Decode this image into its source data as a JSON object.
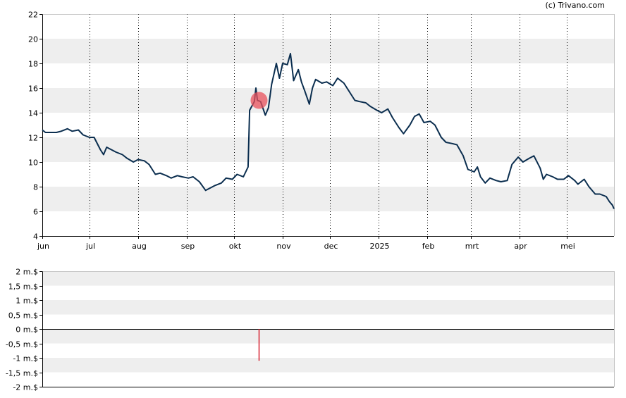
{
  "copyright": "(c) Trivano.com",
  "colors": {
    "line": "#0b2e4f",
    "band": "#eeeeee",
    "marker": "#e8505b",
    "volume_bar": "#d62030",
    "axis": "#000000"
  },
  "chart_data": [
    {
      "type": "line",
      "ylim": [
        4,
        22
      ],
      "y_ticks": [
        "4",
        "6",
        "8",
        "10",
        "12",
        "14",
        "16",
        "18",
        "20",
        "22"
      ],
      "x_ticks": [
        "jun",
        "jul",
        "aug",
        "sep",
        "okt",
        "nov",
        "dec",
        "2025",
        "feb",
        "mrt",
        "apr",
        "mei"
      ],
      "grid": "dotted vertical lines at month ticks, alternating horizontal bands",
      "x_range": [
        "2024-06-01",
        "2025-05-31"
      ],
      "series": [
        {
          "points": [
            [
              "2024-06-01",
              12.6
            ],
            [
              "2024-06-03",
              12.4
            ],
            [
              "2024-06-06",
              12.4
            ],
            [
              "2024-06-10",
              12.4
            ],
            [
              "2024-06-13",
              12.5
            ],
            [
              "2024-06-17",
              12.7
            ],
            [
              "2024-06-20",
              12.5
            ],
            [
              "2024-06-24",
              12.6
            ],
            [
              "2024-06-27",
              12.2
            ],
            [
              "2024-07-01",
              12.0
            ],
            [
              "2024-07-04",
              12.0
            ],
            [
              "2024-07-08",
              11.0
            ],
            [
              "2024-07-10",
              10.6
            ],
            [
              "2024-07-12",
              11.2
            ],
            [
              "2024-07-15",
              11.0
            ],
            [
              "2024-07-18",
              10.8
            ],
            [
              "2024-07-22",
              10.6
            ],
            [
              "2024-07-25",
              10.3
            ],
            [
              "2024-07-29",
              10.0
            ],
            [
              "2024-08-01",
              10.2
            ],
            [
              "2024-08-05",
              10.1
            ],
            [
              "2024-08-08",
              9.8
            ],
            [
              "2024-08-12",
              9.0
            ],
            [
              "2024-08-15",
              9.1
            ],
            [
              "2024-08-19",
              8.9
            ],
            [
              "2024-08-22",
              8.7
            ],
            [
              "2024-08-26",
              8.9
            ],
            [
              "2024-08-29",
              8.8
            ],
            [
              "2024-09-02",
              8.7
            ],
            [
              "2024-09-05",
              8.8
            ],
            [
              "2024-09-09",
              8.4
            ],
            [
              "2024-09-13",
              7.7
            ],
            [
              "2024-09-16",
              7.9
            ],
            [
              "2024-09-19",
              8.1
            ],
            [
              "2024-09-23",
              8.3
            ],
            [
              "2024-09-26",
              8.7
            ],
            [
              "2024-09-30",
              8.6
            ],
            [
              "2024-10-03",
              9.0
            ],
            [
              "2024-10-07",
              8.8
            ],
            [
              "2024-10-10",
              9.6
            ],
            [
              "2024-10-11",
              14.2
            ],
            [
              "2024-10-14",
              14.9
            ],
            [
              "2024-10-15",
              16.0
            ],
            [
              "2024-10-16",
              15.0
            ],
            [
              "2024-10-18",
              14.9
            ],
            [
              "2024-10-21",
              13.8
            ],
            [
              "2024-10-23",
              14.4
            ],
            [
              "2024-10-25",
              16.3
            ],
            [
              "2024-10-28",
              18.0
            ],
            [
              "2024-10-30",
              16.8
            ],
            [
              "2024-11-01",
              18.0
            ],
            [
              "2024-11-04",
              17.9
            ],
            [
              "2024-11-06",
              18.8
            ],
            [
              "2024-11-08",
              16.6
            ],
            [
              "2024-11-11",
              17.5
            ],
            [
              "2024-11-13",
              16.5
            ],
            [
              "2024-11-15",
              15.8
            ],
            [
              "2024-11-18",
              14.7
            ],
            [
              "2024-11-20",
              16.0
            ],
            [
              "2024-11-22",
              16.7
            ],
            [
              "2024-11-26",
              16.4
            ],
            [
              "2024-11-29",
              16.5
            ],
            [
              "2024-12-03",
              16.2
            ],
            [
              "2024-12-06",
              16.8
            ],
            [
              "2024-12-10",
              16.4
            ],
            [
              "2024-12-13",
              15.8
            ],
            [
              "2024-12-17",
              15.0
            ],
            [
              "2024-12-20",
              14.9
            ],
            [
              "2024-12-24",
              14.8
            ],
            [
              "2024-12-27",
              14.5
            ],
            [
              "2024-12-31",
              14.2
            ],
            [
              "2025-01-03",
              14.0
            ],
            [
              "2025-01-07",
              14.3
            ],
            [
              "2025-01-10",
              13.6
            ],
            [
              "2025-01-14",
              12.8
            ],
            [
              "2025-01-17",
              12.3
            ],
            [
              "2025-01-21",
              13.0
            ],
            [
              "2025-01-24",
              13.7
            ],
            [
              "2025-01-27",
              13.9
            ],
            [
              "2025-01-30",
              13.2
            ],
            [
              "2025-02-03",
              13.3
            ],
            [
              "2025-02-06",
              13.0
            ],
            [
              "2025-02-10",
              12.0
            ],
            [
              "2025-02-13",
              11.6
            ],
            [
              "2025-02-17",
              11.5
            ],
            [
              "2025-02-20",
              11.4
            ],
            [
              "2025-02-24",
              10.5
            ],
            [
              "2025-02-27",
              9.4
            ],
            [
              "2025-03-03",
              9.2
            ],
            [
              "2025-03-05",
              9.6
            ],
            [
              "2025-03-07",
              8.8
            ],
            [
              "2025-03-10",
              8.3
            ],
            [
              "2025-03-13",
              8.7
            ],
            [
              "2025-03-17",
              8.5
            ],
            [
              "2025-03-20",
              8.4
            ],
            [
              "2025-03-24",
              8.5
            ],
            [
              "2025-03-27",
              9.8
            ],
            [
              "2025-03-31",
              10.4
            ],
            [
              "2025-04-03",
              10.0
            ],
            [
              "2025-04-07",
              10.3
            ],
            [
              "2025-04-10",
              10.5
            ],
            [
              "2025-04-14",
              9.5
            ],
            [
              "2025-04-16",
              8.6
            ],
            [
              "2025-04-18",
              9.0
            ],
            [
              "2025-04-22",
              8.8
            ],
            [
              "2025-04-25",
              8.6
            ],
            [
              "2025-04-29",
              8.6
            ],
            [
              "2025-05-02",
              8.9
            ],
            [
              "2025-05-06",
              8.5
            ],
            [
              "2025-05-08",
              8.2
            ],
            [
              "2025-05-12",
              8.6
            ],
            [
              "2025-05-15",
              8.0
            ],
            [
              "2025-05-19",
              7.4
            ],
            [
              "2025-05-22",
              7.4
            ],
            [
              "2025-05-26",
              7.2
            ],
            [
              "2025-05-28",
              6.8
            ],
            [
              "2025-05-30",
              6.5
            ],
            [
              "2025-05-31",
              6.2
            ]
          ]
        }
      ],
      "marker": {
        "date": "2024-10-17",
        "value": 15.0
      }
    },
    {
      "type": "bar",
      "ylim": [
        -2,
        2
      ],
      "y_ticks": [
        "2 m.$",
        "1,5 m.$",
        "1 m.$",
        "0,5 m.$",
        "0 m.$",
        "-0,5 m.$",
        "-1 m.$",
        "-1,5 m.$",
        "-2 m.$"
      ],
      "bars": [
        {
          "date": "2024-10-17",
          "value": -1.1
        }
      ]
    }
  ]
}
